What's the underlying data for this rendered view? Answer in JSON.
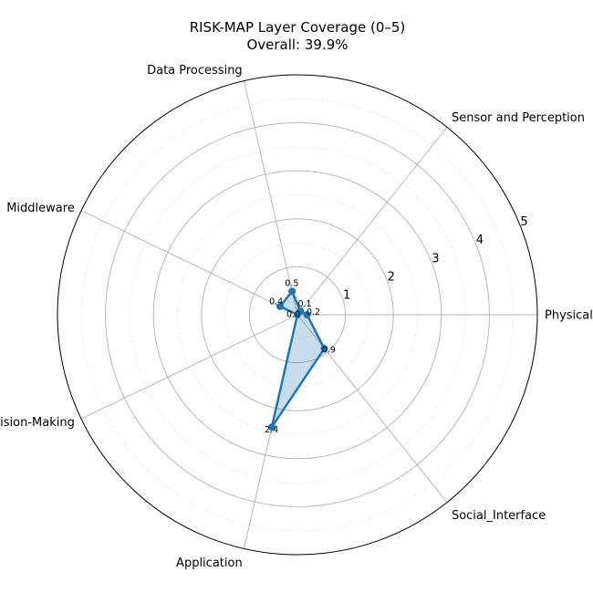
{
  "chart_data": {
    "type": "radar",
    "title": "RISK-MAP Layer Coverage (0–5)",
    "subtitle": "Overall: 39.9%",
    "categories": [
      "Physical",
      "Sensor and Perception",
      "Data Processing",
      "Middleware",
      "Decision-Making",
      "Application",
      "Social_Interface"
    ],
    "values": [
      0.2,
      0.1,
      0.5,
      0.4,
      0.0,
      2.4,
      0.9
    ],
    "data_labels": [
      "0.2",
      "0.1",
      "0.5",
      "0.4",
      "0.0",
      "2.4",
      "0.9"
    ],
    "rlim": [
      0,
      5
    ],
    "r_ticks": [
      1,
      2,
      3,
      4,
      5
    ],
    "r_tick_labels": [
      "1",
      "2",
      "3",
      "4",
      "5"
    ],
    "grid": true,
    "minor_grid": true,
    "legend": "none",
    "colors": {
      "line": "#1f77b4",
      "fill": "#1f77b4",
      "grid": "#b0b0b0",
      "minor_grid": "#d8d8d8",
      "frame": "#000000"
    }
  }
}
